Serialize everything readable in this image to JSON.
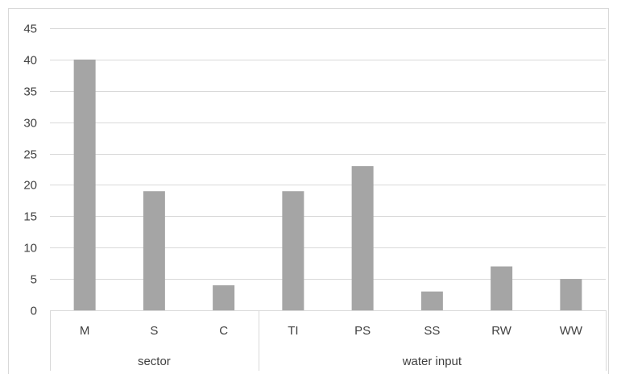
{
  "chart_data": {
    "type": "bar",
    "categories": [
      "M",
      "S",
      "C",
      "TI",
      "PS",
      "SS",
      "RW",
      "WW"
    ],
    "groups": [
      {
        "label": "sector",
        "categories": [
          "M",
          "S",
          "C"
        ]
      },
      {
        "label": "water input",
        "categories": [
          "TI",
          "PS",
          "SS",
          "RW",
          "WW"
        ]
      }
    ],
    "series": [
      {
        "values": [
          40,
          19,
          4,
          19,
          23,
          3,
          7,
          5
        ],
        "color": "#a5a5a5"
      }
    ],
    "ylim": [
      0,
      45
    ],
    "yticks": [
      0,
      5,
      10,
      15,
      20,
      25,
      30,
      35,
      40,
      45
    ],
    "grid": true,
    "legend": "none"
  },
  "colors": {
    "bar": "#a5a5a5",
    "grid": "#d9d9d9",
    "axis_text": "#404040",
    "frame": "#d9d9d9"
  }
}
